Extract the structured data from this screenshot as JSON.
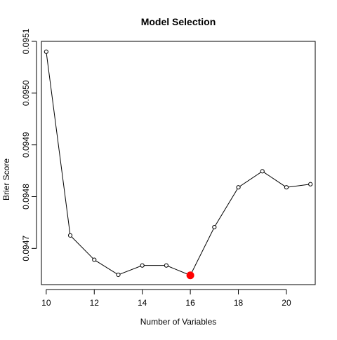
{
  "chart_data": {
    "type": "line",
    "title": "Model Selection",
    "xlabel": "Number of Variables",
    "ylabel": "Brier Score",
    "x": [
      10,
      11,
      12,
      13,
      14,
      15,
      16,
      17,
      18,
      19,
      20,
      21
    ],
    "y": [
      0.09508,
      0.094725,
      0.094678,
      0.094649,
      0.094667,
      0.094667,
      0.094648,
      0.094741,
      0.094818,
      0.094849,
      0.094818,
      0.094824
    ],
    "highlight": {
      "x": 16,
      "y": 0.094648,
      "color": "#ff0000"
    },
    "xlim": [
      9.8,
      21.2
    ],
    "ylim": [
      0.09463,
      0.0951
    ],
    "xticks": [
      10,
      12,
      14,
      16,
      18,
      20
    ],
    "yticks": [
      0.0947,
      0.0948,
      0.0949,
      0.095,
      0.0951
    ],
    "ytick_labels": [
      "0.0947",
      "0.0948",
      "0.0949",
      "0.0950",
      "0.0951"
    ],
    "grid": false,
    "line_color": "#000000"
  }
}
